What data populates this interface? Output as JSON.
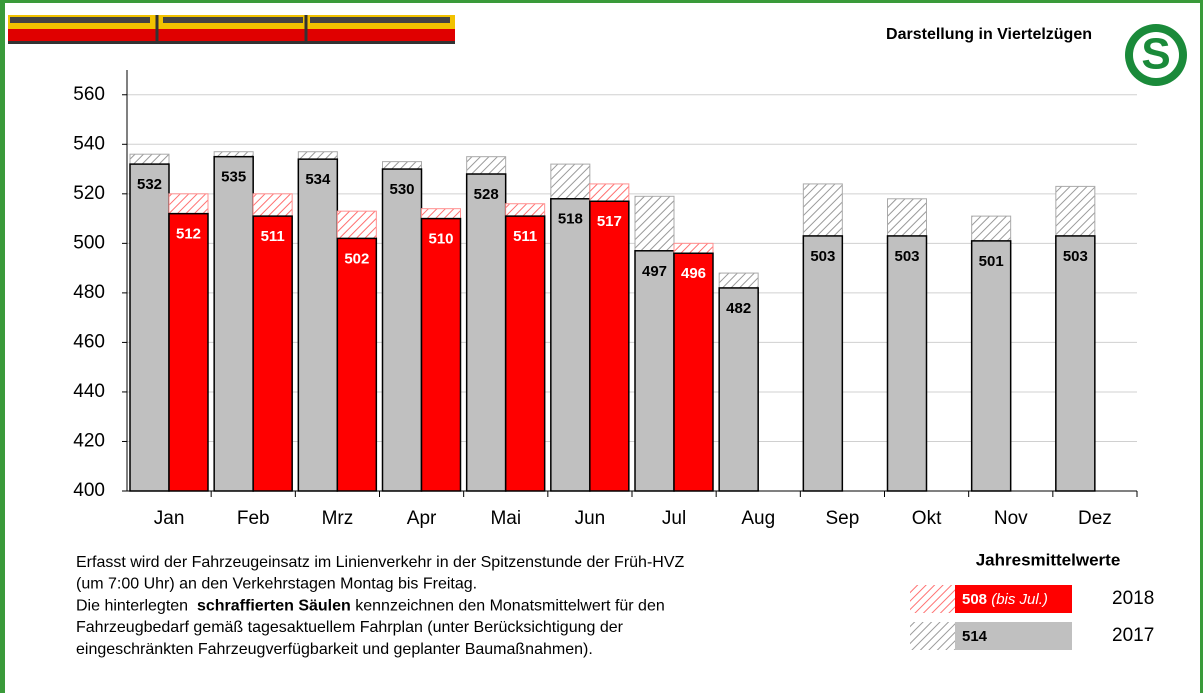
{
  "chart_data": {
    "type": "bar",
    "subtitle": "Darstellung in Viertelzügen",
    "logo": "S",
    "categories": [
      "Jan",
      "Feb",
      "Mrz",
      "Apr",
      "Mai",
      "Jun",
      "Jul",
      "Aug",
      "Sep",
      "Okt",
      "Nov",
      "Dez"
    ],
    "series": [
      {
        "name": "2017",
        "color": "#c0c0c0",
        "label_color": "#000000",
        "annual_mean": 514,
        "values": [
          532,
          535,
          534,
          530,
          528,
          518,
          497,
          482,
          503,
          503,
          501,
          503
        ],
        "hatched_values": [
          536,
          537,
          537,
          533,
          535,
          532,
          519,
          488,
          524,
          518,
          511,
          523
        ]
      },
      {
        "name": "2018",
        "color": "#ff0000",
        "label_color": "#ffffff",
        "annual_mean": 508,
        "annual_mean_note": "(bis Jul.)",
        "values": [
          512,
          511,
          502,
          510,
          511,
          517,
          496,
          null,
          null,
          null,
          null,
          null
        ],
        "hatched_values": [
          520,
          520,
          513,
          514,
          516,
          524,
          500,
          null,
          null,
          null,
          null,
          null
        ]
      }
    ],
    "legend_title": "Jahresmittelwerte",
    "ylim": [
      400,
      570
    ],
    "yticks": [
      400,
      420,
      440,
      460,
      480,
      500,
      520,
      540,
      560
    ],
    "grid": true,
    "note_lines": [
      [
        "Erfasst wird der Fahrzeugeinsatz im Linienverkehr in der Spitzenstunde der Früh-HVZ"
      ],
      [
        "(um 7:00 Uhr) an den Verkehrstagen Montag bis Freitag."
      ],
      [
        "Die hinterlegten  ",
        "schraffierten Säulen",
        " kennzeichnen den Monatsmittelwert für den"
      ],
      [
        "Fahrzeugbedarf gemäß tagesaktuellem Fahrplan (unter Berücksichtigung der"
      ],
      [
        "eingeschränkten Fahrzeugverfügbarkeit und geplanter Baumaßnahmen)."
      ]
    ],
    "note_bold": [
      [
        2,
        1
      ]
    ]
  }
}
